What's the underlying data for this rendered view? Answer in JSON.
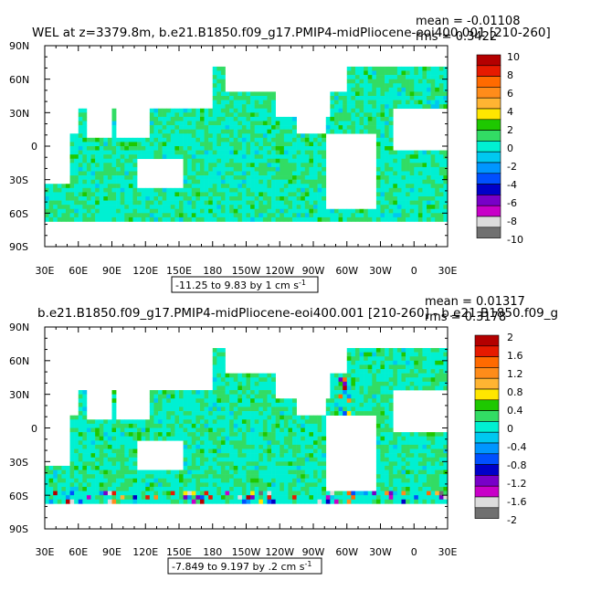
{
  "chart_data": [
    {
      "type": "heatmap",
      "title": "WEL at z=3379.8m, b.e21.B1850.f09_g17.PMIP4-midPliocene-eoi400.001  [210-260]",
      "stats": {
        "mean": "mean = -0.01108",
        "rms": "rms = 0.3422"
      },
      "lat_ticks": [
        "90N",
        "60N",
        "30N",
        "0",
        "30S",
        "60S",
        "90S"
      ],
      "lon_ticks": [
        "30E",
        "60E",
        "90E",
        "120E",
        "150E",
        "180",
        "150W",
        "120W",
        "90W",
        "60W",
        "30W",
        "0",
        "30E"
      ],
      "range_note": "-11.25 to 9.83 by 1 cm s",
      "range_superscript": "-1",
      "colorbar": {
        "labels": [
          "10",
          "8",
          "6",
          "4",
          "2",
          "0",
          "-2",
          "-4",
          "-6",
          "-8",
          "-10"
        ],
        "colors": [
          "#b40000",
          "#e61a00",
          "#ff6a00",
          "#ff8c1a",
          "#ffb432",
          "#ffe600",
          "#1ec800",
          "#32dc64",
          "#00f0d2",
          "#00c8f0",
          "#0096ff",
          "#0050ff",
          "#0000c8",
          "#7800c8",
          "#c800c8",
          "#dcdcdc",
          "#707070"
        ]
      }
    },
    {
      "type": "heatmap",
      "title": "b.e21.B1850.f09_g17.PMIP4-midPliocene-eoi400.001  [210-260] - b.e21.B1850.f09_g",
      "stats": {
        "mean": "mean = 0.01317",
        "rms": "rms = 0.3178"
      },
      "lat_ticks": [
        "90N",
        "60N",
        "30N",
        "0",
        "30S",
        "60S",
        "90S"
      ],
      "lon_ticks": [
        "30E",
        "60E",
        "90E",
        "120E",
        "150E",
        "180",
        "150W",
        "120W",
        "90W",
        "60W",
        "30W",
        "0",
        "30E"
      ],
      "range_note": "-7.849 to 9.197 by .2 cm s",
      "range_superscript": "-1",
      "colorbar": {
        "labels": [
          "2",
          "1.6",
          "1.2",
          "0.8",
          "0.4",
          "0",
          "-0.4",
          "-0.8",
          "-1.2",
          "-1.6",
          "-2"
        ],
        "colors": [
          "#b40000",
          "#e61a00",
          "#ff6a00",
          "#ff8c1a",
          "#ffb432",
          "#ffe600",
          "#1ec800",
          "#32dc64",
          "#00f0d2",
          "#00c8f0",
          "#0096ff",
          "#0050ff",
          "#0000c8",
          "#7800c8",
          "#c800c8",
          "#dcdcdc",
          "#707070"
        ]
      }
    }
  ]
}
